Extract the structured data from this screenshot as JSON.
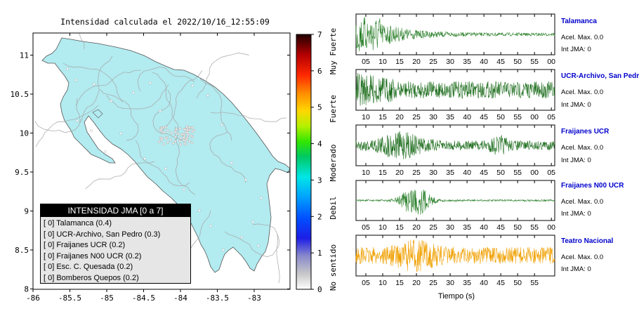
{
  "map": {
    "title": "Intensidad calculada el 2022/10/16_12:55:09",
    "lon_ticks": [
      "-86",
      "-85.5",
      "-85",
      "-84.5",
      "-84",
      "-83.5",
      "-83"
    ],
    "lat_ticks": [
      "11",
      "10.5",
      "10",
      "9.5",
      "9",
      "8.5",
      "8"
    ],
    "land_color": "#b2ebf0",
    "road_color": "#a6a6a6"
  },
  "colorbar": {
    "ticks": [
      "0",
      "1",
      "2",
      "3",
      "4",
      "5",
      "6",
      "7"
    ],
    "labels": [
      "No sentido",
      "Debil",
      "Moderado",
      "Fuerte",
      "Muy Fuerte"
    ]
  },
  "legend": {
    "title": "INTENSIDAD JMA [0 a 7]",
    "items": [
      "[ 0]  Talamanca (0.4)",
      "[ 0]  UCR-Archivo, San Pedro (0.3)",
      "[ 0]  Fraijanes UCR (0.2)",
      "[ 0]  Fraijanes N00 UCR (0.2)",
      "[ 0]  Esc. C. Quesada (0.2)",
      "[ 0]  Bomberos Quepos (0.2)"
    ]
  },
  "seismograms": {
    "time_label": "Tiempo (s)",
    "stations": [
      {
        "name": "Talamanca",
        "acel": "Acel. Max. 0.0",
        "int": "Int JMA: 0",
        "ticks": [
          "05",
          "10",
          "15",
          "20",
          "25",
          "30",
          "35",
          "40",
          "45",
          "50",
          "55",
          "00"
        ],
        "color": "#267d26"
      },
      {
        "name": "UCR-Archivo, San Pedro",
        "acel": "Acel. Max. 0.0",
        "int": "Int JMA: 0",
        "ticks": [
          "10",
          "15",
          "20",
          "25",
          "30",
          "35",
          "40",
          "45",
          "50",
          "55",
          "00",
          "05"
        ],
        "color": "#1a6b1a"
      },
      {
        "name": "Fraijanes UCR",
        "acel": "Acel. Max. 0.0",
        "int": "Int JMA: 0",
        "ticks": [
          "10",
          "15",
          "20",
          "25",
          "30",
          "35",
          "40",
          "45",
          "50",
          "55",
          "00",
          "05"
        ],
        "color": "#1a6b1a"
      },
      {
        "name": "Fraijanes N00 UCR",
        "acel": "Acel. Max. 0.0",
        "int": "Int JMA: 0",
        "ticks": [
          "05",
          "10",
          "15",
          "20",
          "25",
          "30",
          "35",
          "40",
          "45",
          "50",
          "55",
          "00"
        ],
        "color": "#267d26"
      },
      {
        "name": "Teatro Nacional",
        "acel": "Acel. Max. 0.0",
        "int": "Int JMA: 0",
        "ticks": [
          "05",
          "10",
          "15",
          "20",
          "25",
          "30",
          "35",
          "40",
          "45",
          "50",
          "55"
        ],
        "color": "#f0a000"
      }
    ]
  }
}
